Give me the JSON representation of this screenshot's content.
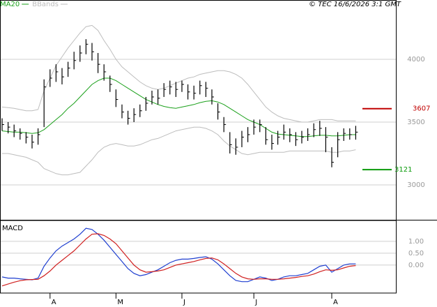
{
  "chart_data": [
    {
      "type": "ohlc",
      "source": "© TEC 16/6/2026 3:1 GMT",
      "color": "#000000",
      "close": [
        3480,
        3460,
        3430,
        3410,
        3380,
        3340,
        3400,
        3780,
        3850,
        3900,
        3860,
        3930,
        3990,
        4050,
        4120,
        4060,
        3960,
        3900,
        3800,
        3680,
        3580,
        3530,
        3560,
        3590,
        3650,
        3700,
        3690,
        3760,
        3780,
        3760,
        3800,
        3740,
        3730,
        3790,
        3770,
        3700,
        3580,
        3480,
        3320,
        3300,
        3380,
        3400,
        3460,
        3480,
        3360,
        3330,
        3380,
        3420,
        3400,
        3360,
        3380,
        3400,
        3440,
        3450,
        3380,
        3180,
        3360,
        3410,
        3400,
        3420
      ],
      "high": [
        3530,
        3500,
        3480,
        3450,
        3420,
        3400,
        3450,
        3840,
        3920,
        3960,
        3930,
        3980,
        4060,
        4110,
        4160,
        4130,
        4050,
        3960,
        3870,
        3760,
        3640,
        3590,
        3610,
        3640,
        3700,
        3750,
        3760,
        3810,
        3830,
        3820,
        3830,
        3800,
        3790,
        3830,
        3820,
        3760,
        3650,
        3540,
        3420,
        3370,
        3430,
        3460,
        3520,
        3520,
        3460,
        3400,
        3430,
        3480,
        3450,
        3420,
        3430,
        3450,
        3490,
        3510,
        3460,
        3300,
        3420,
        3450,
        3450,
        3470
      ],
      "low": [
        3430,
        3410,
        3380,
        3360,
        3330,
        3290,
        3320,
        3460,
        3780,
        3820,
        3800,
        3860,
        3920,
        3980,
        4040,
        3990,
        3890,
        3830,
        3740,
        3620,
        3530,
        3480,
        3500,
        3540,
        3590,
        3640,
        3640,
        3700,
        3720,
        3700,
        3740,
        3680,
        3680,
        3720,
        3700,
        3640,
        3520,
        3420,
        3250,
        3240,
        3300,
        3340,
        3400,
        3420,
        3320,
        3280,
        3320,
        3360,
        3340,
        3310,
        3330,
        3350,
        3380,
        3390,
        3260,
        3140,
        3220,
        3350,
        3360,
        3360
      ],
      "series": [
        {
          "name": "MA20",
          "color": "#1aa01a",
          "values": [
            3430,
            3425,
            3420,
            3420,
            3415,
            3410,
            3415,
            3440,
            3480,
            3520,
            3560,
            3610,
            3650,
            3700,
            3750,
            3800,
            3830,
            3850,
            3850,
            3830,
            3800,
            3770,
            3740,
            3710,
            3680,
            3660,
            3640,
            3625,
            3615,
            3610,
            3620,
            3630,
            3640,
            3655,
            3665,
            3670,
            3660,
            3640,
            3610,
            3580,
            3550,
            3520,
            3500,
            3480,
            3450,
            3420,
            3405,
            3400,
            3395,
            3390,
            3385,
            3385,
            3390,
            3395,
            3395,
            3390,
            3390,
            3395,
            3400,
            3400
          ]
        },
        {
          "name": "BBands",
          "color": "#bdbdbd",
          "upper": [
            3620,
            3615,
            3610,
            3600,
            3590,
            3590,
            3600,
            3750,
            3850,
            3950,
            4020,
            4090,
            4150,
            4210,
            4260,
            4270,
            4230,
            4150,
            4080,
            4000,
            3940,
            3900,
            3860,
            3820,
            3790,
            3770,
            3760,
            3770,
            3790,
            3810,
            3830,
            3850,
            3860,
            3880,
            3890,
            3900,
            3910,
            3910,
            3900,
            3880,
            3850,
            3800,
            3740,
            3680,
            3620,
            3580,
            3550,
            3530,
            3520,
            3510,
            3500,
            3500,
            3510,
            3520,
            3520,
            3520,
            3510,
            3510,
            3510,
            3510
          ],
          "lower": [
            3250,
            3250,
            3240,
            3230,
            3220,
            3200,
            3180,
            3130,
            3110,
            3090,
            3080,
            3080,
            3090,
            3100,
            3150,
            3200,
            3260,
            3300,
            3320,
            3330,
            3320,
            3310,
            3310,
            3320,
            3340,
            3360,
            3370,
            3390,
            3410,
            3430,
            3440,
            3450,
            3460,
            3460,
            3450,
            3430,
            3400,
            3350,
            3310,
            3280,
            3250,
            3240,
            3250,
            3260,
            3260,
            3260,
            3260,
            3260,
            3270,
            3270,
            3270,
            3270,
            3270,
            3270,
            3270,
            3260,
            3260,
            3270,
            3270,
            3280
          ]
        }
      ],
      "levels": [
        {
          "value": 3607,
          "color": "#c00000"
        },
        {
          "value": 3121,
          "color": "#0a9a0a"
        }
      ],
      "ylim": [
        2722,
        4472
      ],
      "yticks": [
        3000,
        3500,
        4000
      ],
      "grid": true
    },
    {
      "type": "line",
      "title": "MACD",
      "categories": [
        null,
        null,
        null,
        null,
        null,
        null,
        null,
        null,
        "A",
        null,
        null,
        null,
        null,
        null,
        null,
        null,
        null,
        null,
        null,
        "M",
        null,
        null,
        null,
        null,
        null,
        null,
        null,
        null,
        null,
        null,
        "J",
        null,
        null,
        null,
        null,
        null,
        null,
        null,
        null,
        null,
        null,
        null,
        "J",
        null,
        null,
        null,
        null,
        null,
        null,
        null,
        null,
        null,
        null,
        null,
        null,
        "A",
        null,
        null,
        null,
        null
      ],
      "series": [
        {
          "color": "#1f3fd0",
          "values": [
            -0.5,
            -0.55,
            -0.55,
            -0.58,
            -0.6,
            -0.62,
            -0.55,
            -0.05,
            0.3,
            0.6,
            0.8,
            0.95,
            1.1,
            1.3,
            1.55,
            1.5,
            1.3,
            1.05,
            0.75,
            0.45,
            0.15,
            -0.15,
            -0.35,
            -0.45,
            -0.4,
            -0.3,
            -0.2,
            -0.05,
            0.1,
            0.2,
            0.25,
            0.25,
            0.28,
            0.32,
            0.35,
            0.25,
            0.05,
            -0.2,
            -0.45,
            -0.65,
            -0.7,
            -0.7,
            -0.6,
            -0.5,
            -0.55,
            -0.65,
            -0.6,
            -0.5,
            -0.45,
            -0.45,
            -0.4,
            -0.35,
            -0.2,
            -0.05,
            0,
            -0.3,
            -0.15,
            0,
            0.05,
            0.05
          ]
        },
        {
          "color": "#d01f1f",
          "values": [
            -0.88,
            -0.8,
            -0.72,
            -0.66,
            -0.62,
            -0.61,
            -0.6,
            -0.45,
            -0.25,
            0,
            0.2,
            0.4,
            0.6,
            0.85,
            1.1,
            1.3,
            1.32,
            1.25,
            1.1,
            0.9,
            0.6,
            0.3,
            0,
            -0.2,
            -0.3,
            -0.28,
            -0.25,
            -0.2,
            -0.1,
            0,
            0.05,
            0.1,
            0.15,
            0.22,
            0.28,
            0.3,
            0.22,
            0.05,
            -0.15,
            -0.35,
            -0.5,
            -0.58,
            -0.6,
            -0.58,
            -0.58,
            -0.6,
            -0.6,
            -0.58,
            -0.55,
            -0.52,
            -0.48,
            -0.45,
            -0.38,
            -0.28,
            -0.2,
            -0.22,
            -0.2,
            -0.12,
            -0.05,
            -0.02
          ]
        }
      ],
      "ylim": [
        -1.18,
        1.88
      ],
      "yticks": [
        {
          "value": 0,
          "label": "0.00"
        },
        {
          "value": 0.5,
          "label": "0.50"
        },
        {
          "value": 1,
          "label": "1.00"
        }
      ],
      "grid": true
    }
  ]
}
